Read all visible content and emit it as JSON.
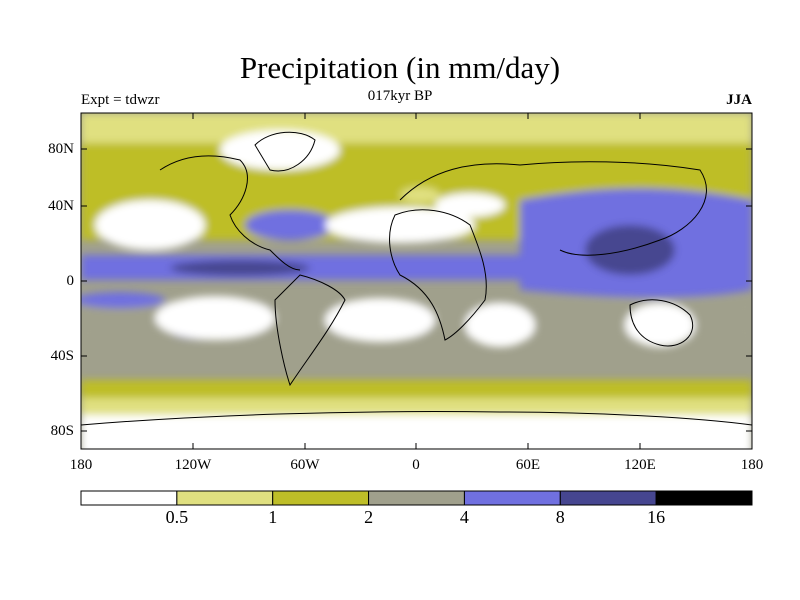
{
  "title": "Precipitation (in mm/day)",
  "subtitle_left": "Expt = tdwzr",
  "subtitle_center": "017kyr BP",
  "subtitle_right": "JJA",
  "lat_labels": [
    "80N",
    "40N",
    "0",
    "40S",
    "80S"
  ],
  "lon_labels": [
    "180",
    "120W",
    "60W",
    "0",
    "60E",
    "120E",
    "180"
  ],
  "colorbar": {
    "labels": [
      "0.5",
      "1",
      "2",
      "4",
      "8",
      "16"
    ],
    "colors": [
      "#ffffff",
      "#e0e080",
      "#bebe28",
      "#a0a08c",
      "#7070e0",
      "#464690",
      "#000000"
    ]
  },
  "chart_data": {
    "type": "heatmap",
    "title": "Precipitation (in mm/day)",
    "experiment": "tdwzr",
    "period": "017kyr BP",
    "season": "JJA",
    "x_range": [
      -180,
      180
    ],
    "y_range": [
      -90,
      90
    ],
    "contour_levels": [
      0.5,
      1,
      2,
      4,
      8,
      16
    ],
    "units": "mm/day"
  }
}
